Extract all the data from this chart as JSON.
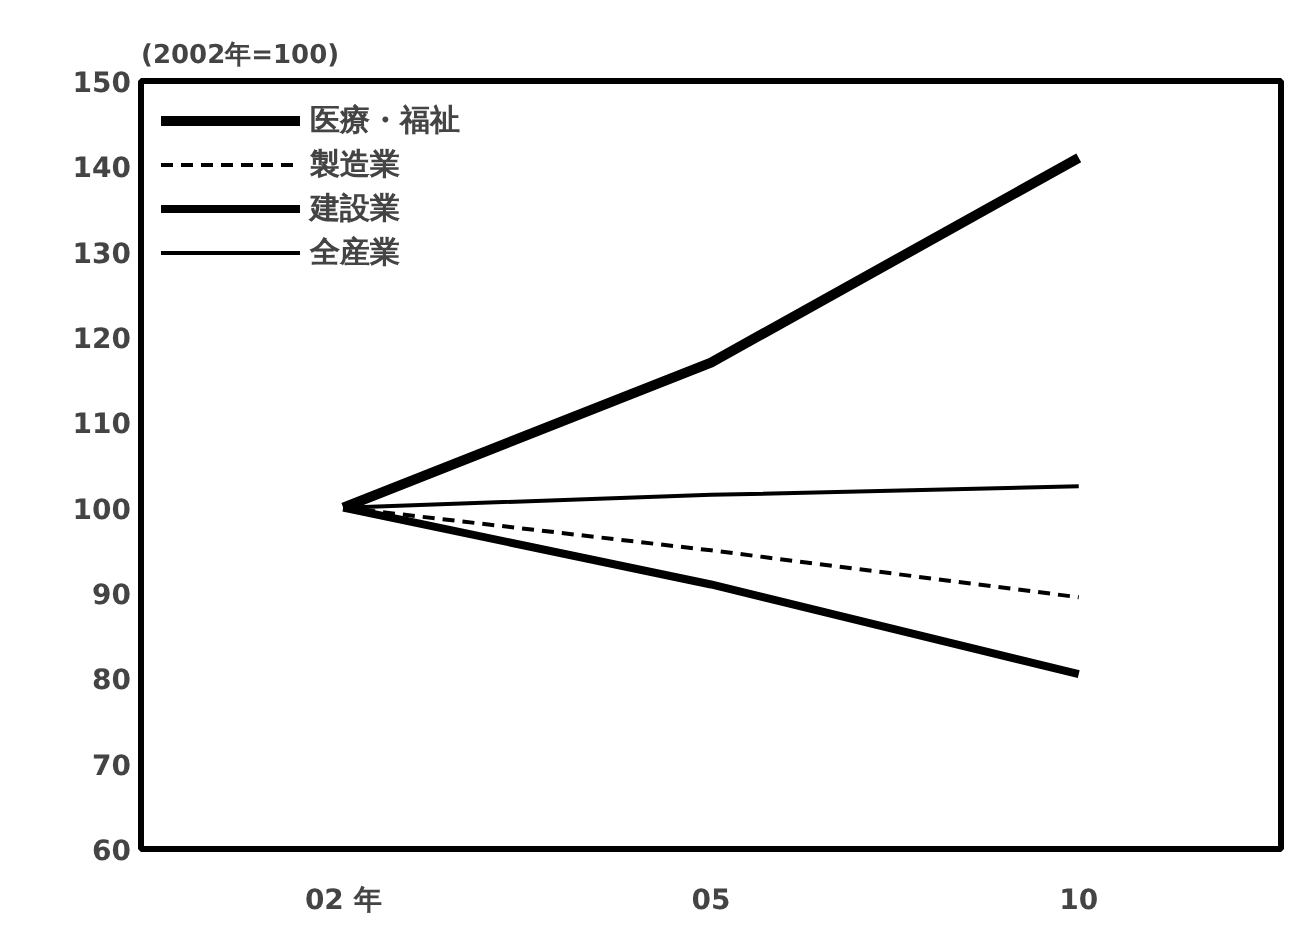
{
  "chart_data": {
    "type": "line",
    "ylabel": "(2002年=100)",
    "categories": [
      "02 年",
      "05",
      "10"
    ],
    "series": [
      {
        "name": "医療・福祉",
        "color": "#000000",
        "values": [
          100,
          117,
          141
        ],
        "line_style": "solid"
      },
      {
        "name": "製造業",
        "color": "#000000",
        "values": [
          100,
          95,
          89.5
        ],
        "line_style": "dashed"
      },
      {
        "name": "建設業",
        "color": "#000000",
        "values": [
          100,
          91,
          80.5
        ],
        "line_style": "solid"
      },
      {
        "name": "全産業",
        "color": "#000000",
        "values": [
          100,
          101.5,
          102.5
        ],
        "line_style": "solid"
      }
    ],
    "ylim": [
      60,
      150
    ],
    "yticks": [
      60,
      70,
      80,
      90,
      100,
      110,
      120,
      130,
      140,
      150
    ],
    "grid": false,
    "legend": "top left",
    "marker": "none"
  }
}
